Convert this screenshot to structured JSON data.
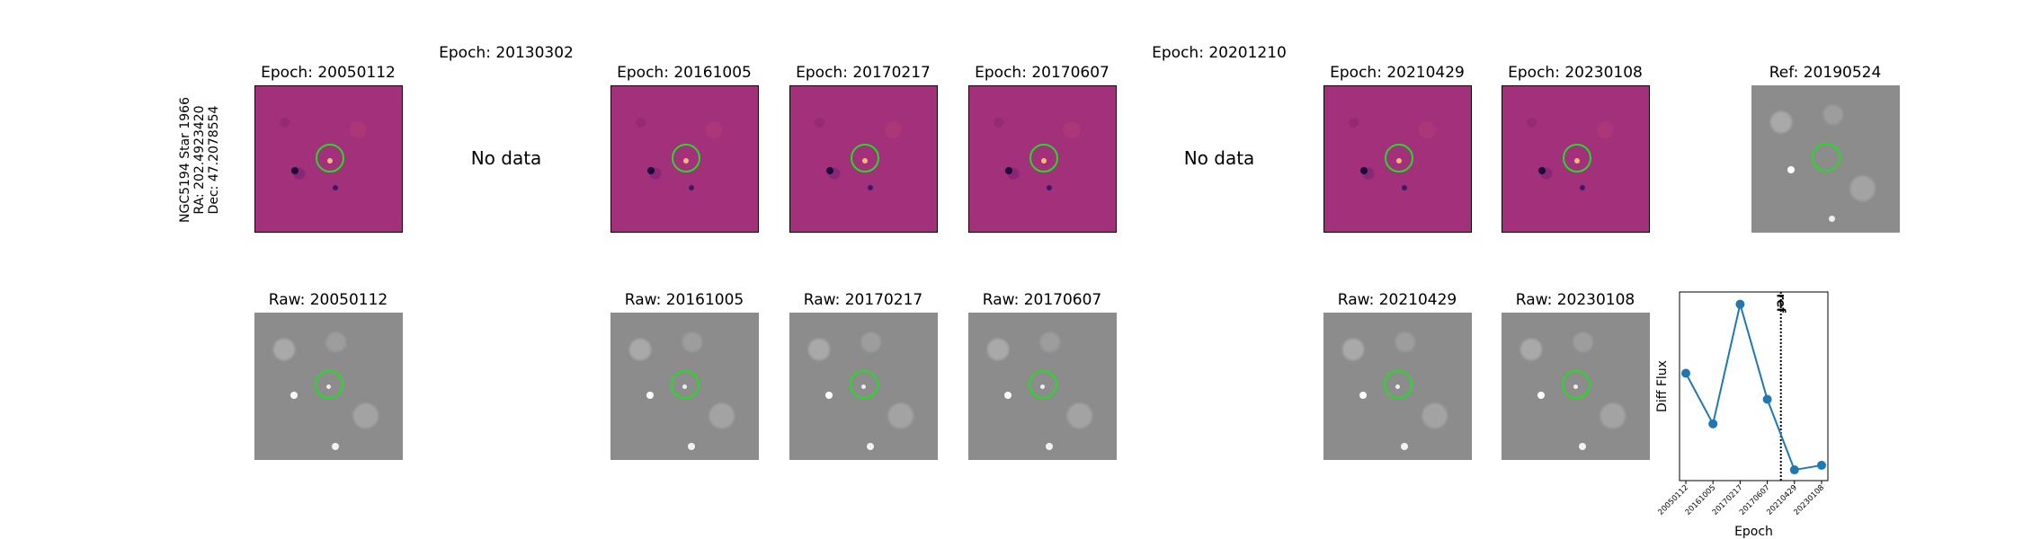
{
  "star_label": {
    "line1": "NGC5194 Star 1966",
    "line2": "RA: 202.4923420",
    "line3": "Dec: 47.2078554"
  },
  "columns": [
    {
      "diff_title": "Epoch: 20050112",
      "raw_title": "Raw: 20050112",
      "has_data": true
    },
    {
      "diff_title": "Epoch: 20130302",
      "raw_title": "",
      "has_data": false,
      "no_data_text": "No data"
    },
    {
      "diff_title": "Epoch: 20161005",
      "raw_title": "Raw: 20161005",
      "has_data": true
    },
    {
      "diff_title": "Epoch: 20170217",
      "raw_title": "Raw: 20170217",
      "has_data": true
    },
    {
      "diff_title": "Epoch: 20170607",
      "raw_title": "Raw: 20170607",
      "has_data": true
    },
    {
      "diff_title": "Epoch: 20201210",
      "raw_title": "",
      "has_data": false,
      "no_data_text": "No data"
    },
    {
      "diff_title": "Epoch: 20210429",
      "raw_title": "Raw: 20210429",
      "has_data": true
    },
    {
      "diff_title": "Epoch: 20230108",
      "raw_title": "Raw: 20230108",
      "has_data": true
    }
  ],
  "reference": {
    "title": "Ref: 20190524"
  },
  "colors": {
    "diff_colormap": "#a2307a",
    "raw_colormap": "#8c8c8c",
    "aperture": "#22dd22",
    "series": "#1f77b4"
  },
  "chart_data": {
    "type": "line",
    "categories": [
      "20050112",
      "20161005",
      "20170217",
      "20170607",
      "20210429",
      "20230108"
    ],
    "values": [
      0.55,
      0.22,
      1.0,
      0.38,
      -0.08,
      -0.05
    ],
    "xlabel": "Epoch",
    "ylabel": "Diff Flux",
    "ylim": [
      -0.15,
      1.08
    ],
    "ref_line": {
      "label": "ref",
      "after_category_index": 3.5
    },
    "grid": false,
    "y_ticks_shown": false
  }
}
